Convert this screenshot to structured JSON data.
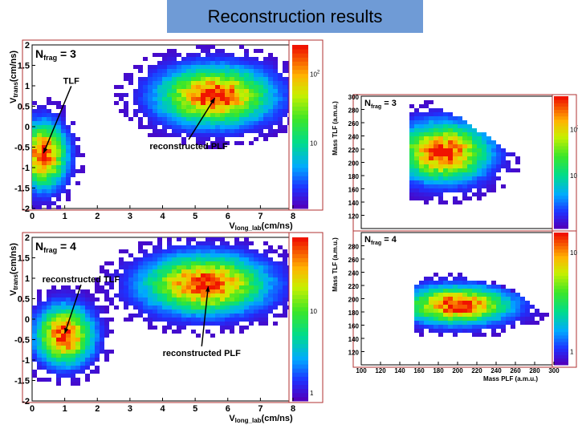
{
  "slide_title": "Reconstruction results",
  "colors": {
    "title_bg": "#6f9bd6",
    "frame": "#b03030",
    "arrow": "#000000"
  },
  "chart_data": [
    {
      "type": "heatmap",
      "id": "vel-n3",
      "nfrag_label": "N",
      "nfrag_sub": "frag",
      "nfrag_value": "= 3",
      "ylabel_main": "V",
      "ylabel_sub": "trans",
      "ylabel_unit": "(cm/ns)",
      "xlabel_main": "V",
      "xlabel_sub": "long_lab",
      "xlabel_unit": "(cm/ns)",
      "xlim": [
        0,
        8
      ],
      "ylim": [
        -2,
        2
      ],
      "xticks": [
        "0",
        "1",
        "2",
        "3",
        "4",
        "5",
        "6",
        "7",
        "8"
      ],
      "yticks": [
        "2",
        "1.5",
        "1",
        "0.5",
        "0",
        "-0.5",
        "-1",
        "-1.5",
        "-2"
      ],
      "colorbar_ticks": [
        {
          "label": "10",
          "sup": "2",
          "pos": 0.82
        },
        {
          "label": "10",
          "sup": "",
          "pos": 0.4
        }
      ],
      "clusters": [
        {
          "name": "TLF",
          "x": 0.35,
          "y": -0.7,
          "sx": 0.45,
          "sy": 0.5,
          "peak": 1.0
        },
        {
          "name": "reconstructed PLF",
          "x": 5.6,
          "y": 0.75,
          "sx": 1.1,
          "sy": 0.45,
          "peak": 1.0
        }
      ],
      "annotations": [
        {
          "text": "TLF",
          "x": 1.2,
          "y": 1.05,
          "target_x": 0.35,
          "target_y": -0.65
        },
        {
          "text": "reconstructed PLF",
          "x": 4.8,
          "y": -0.55,
          "target_x": 5.6,
          "target_y": 0.7
        }
      ]
    },
    {
      "type": "heatmap",
      "id": "vel-n4",
      "nfrag_label": "N",
      "nfrag_sub": "frag",
      "nfrag_value": "= 4",
      "ylabel_main": "V",
      "ylabel_sub": "trans",
      "ylabel_unit": "(cm/ns)",
      "xlabel_main": "V",
      "xlabel_sub": "long_lab",
      "xlabel_unit": "(cm/ns)",
      "xlim": [
        0,
        8
      ],
      "ylim": [
        -2,
        2
      ],
      "xticks": [
        "0",
        "1",
        "2",
        "3",
        "4",
        "5",
        "6",
        "7",
        "8"
      ],
      "yticks": [
        "2",
        "1.5",
        "1",
        "0.5",
        "0",
        "-0.5",
        "-1",
        "-1.5",
        "-2"
      ],
      "colorbar_ticks": [
        {
          "label": "10",
          "sup": "",
          "pos": 0.55
        },
        {
          "label": "1",
          "sup": "",
          "pos": 0.05
        }
      ],
      "clusters": [
        {
          "name": "reconstructed TLF",
          "x": 1.0,
          "y": -0.4,
          "sx": 0.55,
          "sy": 0.45,
          "peak": 1.0
        },
        {
          "name": "reconstructed PLF",
          "x": 5.3,
          "y": 0.85,
          "sx": 1.2,
          "sy": 0.45,
          "peak": 1.0
        }
      ],
      "annotations": [
        {
          "text": "reconstructed TLF",
          "x": 1.5,
          "y": 0.9,
          "target_x": 1.0,
          "target_y": -0.35
        },
        {
          "text": "reconstructed PLF",
          "x": 5.2,
          "y": -0.9,
          "target_x": 5.4,
          "target_y": 0.8
        }
      ]
    },
    {
      "type": "heatmap",
      "id": "mass-n3",
      "nfrag_label": "N",
      "nfrag_sub": "frag",
      "nfrag_value": "= 3",
      "ylabel": "Mass TLF (a.m.u.)",
      "xlim": [
        100,
        300
      ],
      "ylim": [
        100,
        300
      ],
      "yticks": [
        "300",
        "280",
        "260",
        "240",
        "220",
        "200",
        "180",
        "160",
        "140",
        "120"
      ],
      "colorbar_ticks": [
        {
          "label": "10",
          "sup": "2",
          "pos": 0.75
        },
        {
          "label": "10",
          "sup": "",
          "pos": 0.4
        }
      ],
      "clusters": [
        {
          "name": "main",
          "x": 185,
          "y": 215,
          "sx": 30,
          "sy": 28,
          "peak": 1.0
        }
      ]
    },
    {
      "type": "heatmap",
      "id": "mass-n4",
      "nfrag_label": "N",
      "nfrag_sub": "frag",
      "nfrag_value": "= 4",
      "ylabel": "Mass TLF (a.m.u.)",
      "xlabel": "Mass PLF (a.m.u.)",
      "xlim": [
        100,
        300
      ],
      "ylim": [
        100,
        300
      ],
      "xticks": [
        "100",
        "120",
        "140",
        "160",
        "180",
        "200",
        "220",
        "240",
        "260",
        "280",
        "300"
      ],
      "yticks": [
        "280",
        "260",
        "240",
        "220",
        "200",
        "180",
        "160",
        "140",
        "120"
      ],
      "colorbar_ticks": [
        {
          "label": "10",
          "sup": "",
          "pos": 0.85
        },
        {
          "label": "1",
          "sup": "",
          "pos": 0.1
        }
      ],
      "clusters": [
        {
          "name": "main",
          "x": 200,
          "y": 190,
          "sx": 35,
          "sy": 18,
          "peak": 1.0
        }
      ]
    }
  ]
}
